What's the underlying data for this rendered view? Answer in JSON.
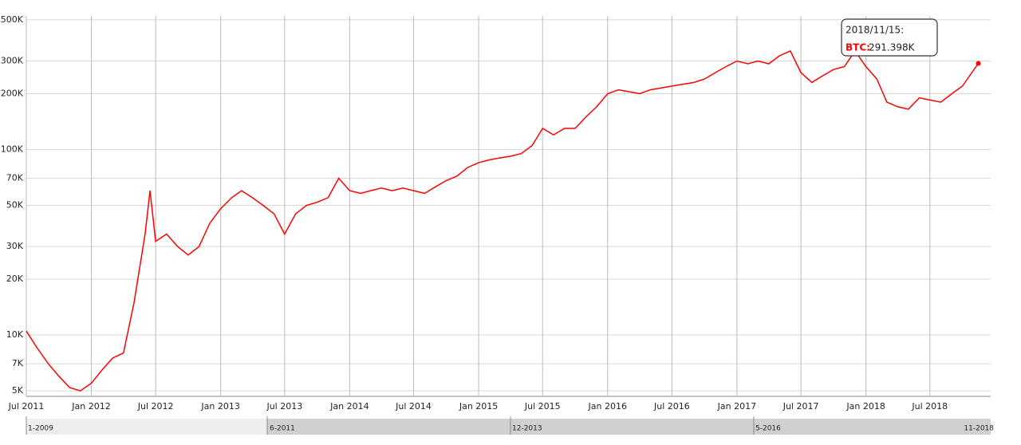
{
  "chart_data": {
    "type": "line",
    "log_scale_y": true,
    "grid": true,
    "xlim": [
      "2011-07-01",
      "2018-12-20"
    ],
    "xticks": [
      {
        "value": "2011-07-01",
        "label": "Jul 2011"
      },
      {
        "value": "2012-01-01",
        "label": "Jan 2012"
      },
      {
        "value": "2012-07-01",
        "label": "Jul 2012"
      },
      {
        "value": "2013-01-01",
        "label": "Jan 2013"
      },
      {
        "value": "2013-07-01",
        "label": "Jul 2013"
      },
      {
        "value": "2014-01-01",
        "label": "Jan 2014"
      },
      {
        "value": "2014-07-01",
        "label": "Jul 2014"
      },
      {
        "value": "2015-01-01",
        "label": "Jan 2015"
      },
      {
        "value": "2015-07-01",
        "label": "Jul 2015"
      },
      {
        "value": "2016-01-01",
        "label": "Jan 2016"
      },
      {
        "value": "2016-07-01",
        "label": "Jul 2016"
      },
      {
        "value": "2017-01-01",
        "label": "Jan 2017"
      },
      {
        "value": "2017-07-01",
        "label": "Jul 2017"
      },
      {
        "value": "2018-01-01",
        "label": "Jan 2018"
      },
      {
        "value": "2018-07-01",
        "label": "Jul 2018"
      }
    ],
    "ylim": [
      4670,
      525000
    ],
    "yticks": [
      {
        "value": 5000,
        "label": "5K"
      },
      {
        "value": 7000,
        "label": "7K"
      },
      {
        "value": 10000,
        "label": "10K"
      },
      {
        "value": 20000,
        "label": "20K"
      },
      {
        "value": 30000,
        "label": "30K"
      },
      {
        "value": 50000,
        "label": "50K"
      },
      {
        "value": 70000,
        "label": "70K"
      },
      {
        "value": 100000,
        "label": "100K"
      },
      {
        "value": 200000,
        "label": "200K"
      },
      {
        "value": 300000,
        "label": "300K"
      },
      {
        "value": 500000,
        "label": "500K"
      }
    ],
    "x": [
      "2011-07-01",
      "2011-08-01",
      "2011-09-01",
      "2011-10-01",
      "2011-11-01",
      "2011-12-01",
      "2012-01-01",
      "2012-02-01",
      "2012-03-01",
      "2012-04-01",
      "2012-05-01",
      "2012-06-01",
      "2012-06-15",
      "2012-07-01",
      "2012-08-01",
      "2012-09-01",
      "2012-10-01",
      "2012-11-01",
      "2012-12-01",
      "2013-01-01",
      "2013-02-01",
      "2013-03-01",
      "2013-04-01",
      "2013-05-01",
      "2013-06-01",
      "2013-07-01",
      "2013-08-01",
      "2013-09-01",
      "2013-10-01",
      "2013-11-01",
      "2013-12-01",
      "2014-01-01",
      "2014-02-01",
      "2014-03-01",
      "2014-04-01",
      "2014-05-01",
      "2014-06-01",
      "2014-07-01",
      "2014-08-01",
      "2014-09-01",
      "2014-10-01",
      "2014-11-01",
      "2014-12-01",
      "2015-01-01",
      "2015-02-01",
      "2015-03-01",
      "2015-04-01",
      "2015-05-01",
      "2015-06-01",
      "2015-07-01",
      "2015-08-01",
      "2015-09-01",
      "2015-10-01",
      "2015-11-01",
      "2015-12-01",
      "2016-01-01",
      "2016-02-01",
      "2016-03-01",
      "2016-04-01",
      "2016-05-01",
      "2016-06-01",
      "2016-07-01",
      "2016-08-01",
      "2016-09-01",
      "2016-10-01",
      "2016-11-01",
      "2016-12-01",
      "2017-01-01",
      "2017-02-01",
      "2017-03-01",
      "2017-04-01",
      "2017-05-01",
      "2017-06-01",
      "2017-07-01",
      "2017-08-01",
      "2017-09-01",
      "2017-10-01",
      "2017-11-01",
      "2017-12-01",
      "2018-01-01",
      "2018-02-01",
      "2018-03-01",
      "2018-04-01",
      "2018-05-01",
      "2018-06-01",
      "2018-07-01",
      "2018-08-01",
      "2018-09-01",
      "2018-10-01",
      "2018-11-15"
    ],
    "series": [
      {
        "name": "BTC",
        "color": "#ff0000",
        "values": [
          10500,
          8500,
          7000,
          6000,
          5200,
          5000,
          5500,
          6500,
          7500,
          8000,
          15000,
          35000,
          60000,
          32000,
          35000,
          30000,
          27000,
          30000,
          40000,
          48000,
          55000,
          60000,
          55000,
          50000,
          45000,
          35000,
          45000,
          50000,
          52000,
          55000,
          70000,
          60000,
          58000,
          60000,
          62000,
          60000,
          62000,
          60000,
          58000,
          63000,
          68000,
          72000,
          80000,
          85000,
          88000,
          90000,
          92000,
          95000,
          105000,
          130000,
          120000,
          130000,
          130000,
          150000,
          170000,
          200000,
          210000,
          205000,
          200000,
          210000,
          215000,
          220000,
          225000,
          230000,
          240000,
          260000,
          280000,
          300000,
          290000,
          300000,
          290000,
          320000,
          340000,
          260000,
          230000,
          250000,
          270000,
          280000,
          340000,
          280000,
          240000,
          180000,
          170000,
          165000,
          190000,
          185000,
          180000,
          200000,
          220000,
          291398
        ]
      }
    ],
    "tooltip": {
      "date": "2018/11/15:",
      "label": "BTC:",
      "value": 291398,
      "value_label": "291.398K"
    },
    "navigator_labels": [
      "1-2009",
      "6-2011",
      "12-2013",
      "5-2016",
      "11-2018"
    ]
  }
}
